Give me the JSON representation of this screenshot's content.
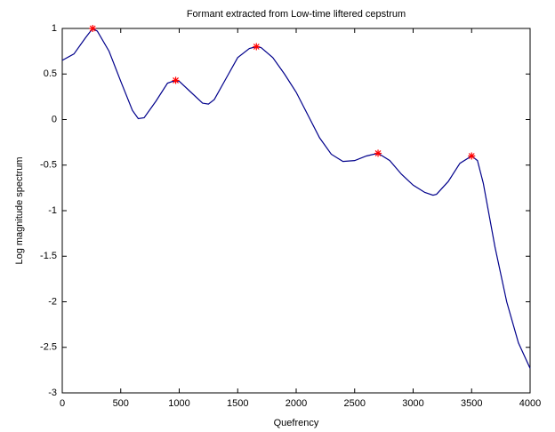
{
  "chart_data": {
    "type": "line",
    "title": "Formant extracted from Low-time liftered cepstrum",
    "xlabel": "Quefrency",
    "ylabel": "Log magnitude spectrum",
    "xlim": [
      0,
      4000
    ],
    "ylim": [
      -3,
      1
    ],
    "xticks": [
      0,
      500,
      1000,
      1500,
      2000,
      2500,
      3000,
      3500,
      4000
    ],
    "yticks": [
      1,
      0.5,
      0,
      -0.5,
      -1,
      -1.5,
      -2,
      -2.5,
      -3
    ],
    "series": [
      {
        "color": "#00008b",
        "marker": "none",
        "x": [
          0,
          100,
          200,
          260,
          300,
          400,
          500,
          600,
          650,
          700,
          800,
          900,
          970,
          1000,
          1100,
          1200,
          1250,
          1300,
          1400,
          1500,
          1600,
          1660,
          1700,
          1800,
          1900,
          2000,
          2100,
          2200,
          2300,
          2400,
          2500,
          2600,
          2700,
          2800,
          2900,
          3000,
          3100,
          3170,
          3200,
          3300,
          3400,
          3500,
          3550,
          3600,
          3700,
          3800,
          3900,
          4000
        ],
        "values": [
          0.65,
          0.72,
          0.9,
          1.0,
          0.97,
          0.75,
          0.42,
          0.1,
          0.01,
          0.02,
          0.2,
          0.4,
          0.43,
          0.42,
          0.3,
          0.18,
          0.17,
          0.22,
          0.45,
          0.68,
          0.78,
          0.8,
          0.79,
          0.68,
          0.5,
          0.3,
          0.05,
          -0.2,
          -0.38,
          -0.46,
          -0.45,
          -0.4,
          -0.37,
          -0.45,
          -0.6,
          -0.72,
          -0.8,
          -0.83,
          -0.82,
          -0.68,
          -0.48,
          -0.4,
          -0.45,
          -0.7,
          -1.4,
          -2.0,
          -2.45,
          -2.73
        ]
      },
      {
        "color": "#ff0000",
        "marker": "star",
        "x": [
          260,
          970,
          1660,
          2700,
          3500
        ],
        "values": [
          1.0,
          0.43,
          0.8,
          -0.37,
          -0.4
        ]
      }
    ]
  }
}
